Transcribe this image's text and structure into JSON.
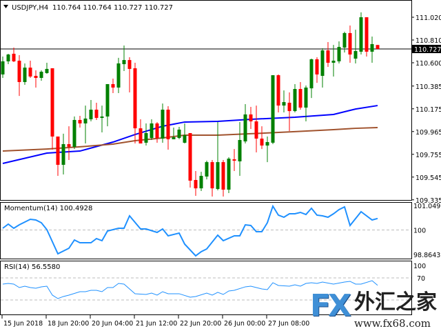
{
  "header": {
    "symbol": "USDJPY,H4",
    "ohlc_readout": "110.764 110.764 110.727 110.727"
  },
  "colors": {
    "bull": "#008000",
    "bear": "#ff0000",
    "ma_fast": "#0000ff",
    "ma_slow": "#a0522d",
    "indicator": "#1e90ff",
    "current_price_bg": "#000000"
  },
  "chart_data": [
    {
      "type": "candlestick",
      "title": "USDJPY,H4",
      "ylim": [
        109.335,
        111.09
      ],
      "yticks": [
        "111.020",
        "110.810",
        "110.600",
        "110.385",
        "110.175",
        "109.965",
        "109.755",
        "109.545",
        "109.335"
      ],
      "ytick_values": [
        111.02,
        110.81,
        110.6,
        110.385,
        110.175,
        109.965,
        109.755,
        109.545,
        109.335
      ],
      "current_price": 110.727,
      "current_price_label": "110.727",
      "xticks": [
        {
          "index": 0,
          "label": "15 Jun 2018"
        },
        {
          "index": 8,
          "label": "18 Jun 20:00"
        },
        {
          "index": 16,
          "label": "20 Jun 04:00"
        },
        {
          "index": 24,
          "label": "21 Jun 12:00"
        },
        {
          "index": 32,
          "label": "22 Jun 20:00"
        },
        {
          "index": 40,
          "label": "26 Jun 00:00"
        },
        {
          "index": 48,
          "label": "27 Jun 08:00"
        }
      ],
      "ohlc": [
        [
          110.492,
          110.657,
          110.46,
          110.613
        ],
        [
          110.613,
          110.683,
          110.587,
          110.676
        ],
        [
          110.683,
          110.74,
          110.606,
          110.613
        ],
        [
          110.619,
          110.67,
          110.294,
          110.422
        ],
        [
          110.422,
          110.594,
          110.396,
          110.555
        ],
        [
          110.555,
          110.619,
          110.46,
          110.473
        ],
        [
          110.479,
          110.53,
          110.371,
          110.46
        ],
        [
          110.46,
          110.53,
          110.434,
          110.517
        ],
        [
          110.505,
          110.6,
          110.498,
          110.543
        ],
        [
          110.549,
          110.549,
          109.798,
          109.919
        ],
        [
          109.919,
          109.919,
          109.556,
          109.658
        ],
        [
          109.658,
          109.945,
          109.569,
          109.849
        ],
        [
          109.849,
          110.014,
          109.703,
          109.824
        ],
        [
          109.824,
          110.104,
          109.804,
          110.072
        ],
        [
          110.072,
          110.11,
          110.002,
          110.04
        ],
        [
          110.04,
          110.205,
          109.855,
          110.085
        ],
        [
          110.078,
          110.256,
          110.059,
          110.167
        ],
        [
          110.167,
          110.231,
          110.072,
          110.091
        ],
        [
          110.091,
          110.205,
          109.957,
          110.104
        ],
        [
          110.104,
          110.403,
          110.014,
          110.403
        ],
        [
          110.403,
          110.454,
          110.32,
          110.371
        ],
        [
          110.371,
          110.645,
          110.32,
          110.594
        ],
        [
          110.587,
          110.759,
          110.524,
          110.625
        ],
        [
          110.625,
          110.651,
          110.326,
          110.543
        ],
        [
          110.549,
          110.6,
          109.855,
          109.995
        ],
        [
          109.995,
          110.078,
          109.855,
          109.855
        ],
        [
          109.862,
          110.04,
          109.836,
          109.951
        ],
        [
          109.906,
          110.078,
          109.887,
          110.04
        ],
        [
          110.04,
          110.053,
          109.862,
          109.906
        ],
        [
          109.9,
          110.224,
          109.862,
          110.167
        ],
        [
          110.167,
          110.199,
          109.798,
          109.894
        ],
        [
          109.894,
          110.002,
          109.894,
          109.913
        ],
        [
          109.906,
          110.008,
          109.894,
          109.983
        ],
        [
          109.862,
          110.04,
          109.855,
          109.932
        ],
        [
          109.951,
          109.951,
          109.448,
          109.512
        ],
        [
          109.518,
          109.601,
          109.372,
          109.441
        ],
        [
          109.441,
          109.594,
          109.416,
          109.556
        ],
        [
          109.55,
          109.696,
          109.524,
          109.683
        ],
        [
          109.683,
          109.703,
          109.365,
          109.441
        ],
        [
          109.435,
          110.053,
          109.423,
          109.683
        ],
        [
          109.683,
          109.703,
          109.365,
          109.429
        ],
        [
          109.429,
          109.728,
          109.397,
          109.715
        ],
        [
          109.709,
          109.804,
          109.601,
          109.696
        ],
        [
          109.69,
          110.053,
          109.556,
          109.887
        ],
        [
          109.874,
          110.218,
          109.855,
          110.123
        ],
        [
          110.123,
          110.193,
          109.989,
          110.059
        ],
        [
          110.059,
          110.205,
          109.773,
          109.9
        ],
        [
          109.9,
          110.014,
          109.804,
          109.836
        ],
        [
          109.836,
          109.919,
          109.683,
          109.868
        ],
        [
          109.862,
          110.485,
          109.849,
          110.485
        ],
        [
          110.485,
          110.492,
          110.142,
          110.205
        ],
        [
          110.205,
          110.345,
          110.142,
          110.237
        ],
        [
          110.231,
          110.326,
          109.97,
          110.154
        ],
        [
          110.154,
          110.403,
          110.142,
          110.358
        ],
        [
          110.358,
          110.422,
          110.167,
          110.186
        ],
        [
          110.186,
          110.39,
          110.059,
          110.371
        ],
        [
          110.364,
          110.638,
          110.275,
          110.632
        ],
        [
          110.632,
          110.651,
          110.415,
          110.492
        ],
        [
          110.479,
          110.734,
          110.371,
          110.714
        ],
        [
          110.714,
          110.791,
          110.562,
          110.6
        ],
        [
          110.6,
          110.765,
          110.473,
          110.619
        ],
        [
          110.613,
          110.797,
          110.594,
          110.746
        ],
        [
          110.74,
          110.886,
          110.695,
          110.874
        ],
        [
          110.874,
          110.944,
          110.6,
          110.676
        ],
        [
          110.638,
          110.905,
          110.594,
          110.708
        ],
        [
          110.702,
          111.065,
          110.676,
          111.02
        ],
        [
          111.02,
          111.02,
          110.657,
          110.702
        ],
        [
          110.702,
          110.842,
          110.6,
          110.772
        ],
        [
          110.764,
          110.764,
          110.727,
          110.727
        ]
      ],
      "overlays": [
        {
          "color": "#0000ff",
          "points": [
            [
              0,
              109.671
            ],
            [
              8,
              109.766
            ],
            [
              14,
              109.785
            ],
            [
              20,
              109.868
            ],
            [
              24,
              109.938
            ],
            [
              29,
              110.014
            ],
            [
              33,
              110.053
            ],
            [
              39,
              110.059
            ],
            [
              45,
              110.078
            ],
            [
              53,
              110.097
            ],
            [
              60,
              110.123
            ],
            [
              64,
              110.173
            ],
            [
              68,
              110.205
            ]
          ]
        },
        {
          "color": "#a0522d",
          "points": [
            [
              0,
              109.785
            ],
            [
              8,
              109.804
            ],
            [
              14,
              109.824
            ],
            [
              20,
              109.849
            ],
            [
              24,
              109.881
            ],
            [
              29,
              109.906
            ],
            [
              33,
              109.932
            ],
            [
              39,
              109.932
            ],
            [
              45,
              109.945
            ],
            [
              53,
              109.964
            ],
            [
              60,
              109.983
            ],
            [
              64,
              109.995
            ],
            [
              68,
              110.002
            ]
          ]
        }
      ]
    },
    {
      "type": "line",
      "title": "Momentum(14) 100.4928",
      "ylim": [
        98.8643,
        101.0496
      ],
      "yticks": [
        "101.0496",
        "100",
        "98.8643"
      ],
      "level": 100,
      "points": [
        [
          0,
          100.074
        ],
        [
          1,
          100.251
        ],
        [
          2,
          100.074
        ],
        [
          3,
          100.221
        ],
        [
          4,
          100.34
        ],
        [
          5,
          100.458
        ],
        [
          6,
          100.428
        ],
        [
          7,
          100.31
        ],
        [
          8,
          100.015
        ],
        [
          10,
          98.981
        ],
        [
          12,
          99.217
        ],
        [
          13,
          99.572
        ],
        [
          14,
          99.454
        ],
        [
          16,
          99.454
        ],
        [
          17,
          99.631
        ],
        [
          18,
          99.542
        ],
        [
          19,
          99.956
        ],
        [
          21,
          100.074
        ],
        [
          22,
          100.074
        ],
        [
          23,
          100.605
        ],
        [
          25,
          100.044
        ],
        [
          26,
          100.044
        ],
        [
          28,
          99.897
        ],
        [
          29,
          100.044
        ],
        [
          30,
          99.749
        ],
        [
          32,
          99.867
        ],
        [
          33,
          99.395
        ],
        [
          35,
          98.893
        ],
        [
          36,
          99.07
        ],
        [
          37,
          99.188
        ],
        [
          39,
          99.779
        ],
        [
          40,
          99.542
        ],
        [
          42,
          99.749
        ],
        [
          43,
          99.749
        ],
        [
          44,
          100.221
        ],
        [
          45,
          100.192
        ],
        [
          46,
          99.926
        ],
        [
          47,
          99.926
        ],
        [
          48,
          100.31
        ],
        [
          49,
          101.019
        ],
        [
          50,
          100.635
        ],
        [
          51,
          100.546
        ],
        [
          52,
          100.694
        ],
        [
          53,
          100.694
        ],
        [
          54,
          100.753
        ],
        [
          55,
          100.664
        ],
        [
          56,
          100.93
        ],
        [
          57,
          100.635
        ],
        [
          58,
          100.605
        ],
        [
          59,
          100.546
        ],
        [
          60,
          100.694
        ],
        [
          61,
          100.871
        ],
        [
          62,
          100.989
        ],
        [
          63,
          100.192
        ],
        [
          65,
          100.783
        ],
        [
          67,
          100.428
        ],
        [
          68,
          100.4928
        ]
      ]
    },
    {
      "type": "line",
      "title": "RSI(14) 56.5580",
      "ylim": [
        0,
        100
      ],
      "yticks": [
        "100",
        "70"
      ],
      "levels": [
        70,
        30
      ],
      "points": [
        [
          0,
          58.8
        ],
        [
          1,
          60.0
        ],
        [
          2,
          58.8
        ],
        [
          3,
          52.5
        ],
        [
          4,
          55.0
        ],
        [
          5,
          52.5
        ],
        [
          6,
          51.3
        ],
        [
          7,
          53.8
        ],
        [
          8,
          55.0
        ],
        [
          9,
          38.8
        ],
        [
          10,
          32.5
        ],
        [
          11,
          36.3
        ],
        [
          12,
          38.8
        ],
        [
          14,
          45.0
        ],
        [
          15,
          45.0
        ],
        [
          16,
          47.5
        ],
        [
          17,
          47.5
        ],
        [
          18,
          45.0
        ],
        [
          19,
          52.5
        ],
        [
          20,
          52.5
        ],
        [
          21,
          60.0
        ],
        [
          22,
          58.8
        ],
        [
          24,
          41.3
        ],
        [
          26,
          40.0
        ],
        [
          27,
          42.5
        ],
        [
          28,
          38.8
        ],
        [
          29,
          45.0
        ],
        [
          30,
          41.3
        ],
        [
          32,
          41.3
        ],
        [
          34,
          35.0
        ],
        [
          35,
          36.3
        ],
        [
          37,
          42.5
        ],
        [
          38,
          38.8
        ],
        [
          39,
          43.8
        ],
        [
          40,
          40.0
        ],
        [
          41,
          46.3
        ],
        [
          42,
          47.5
        ],
        [
          44,
          53.8
        ],
        [
          45,
          55.0
        ],
        [
          47,
          50.0
        ],
        [
          48,
          48.8
        ],
        [
          49,
          61.3
        ],
        [
          50,
          56.3
        ],
        [
          52,
          55.0
        ],
        [
          53,
          57.5
        ],
        [
          54,
          55.0
        ],
        [
          55,
          60.0
        ],
        [
          56,
          61.3
        ],
        [
          57,
          60.0
        ],
        [
          58,
          62.5
        ],
        [
          60,
          58.8
        ],
        [
          62,
          62.5
        ],
        [
          63,
          63.8
        ],
        [
          64,
          58.8
        ],
        [
          65,
          58.8
        ],
        [
          67,
          65.0
        ],
        [
          68,
          56.558
        ]
      ]
    }
  ],
  "watermark": {
    "logo": "FX",
    "brand": "外汇之家",
    "url": "www.fx68.com"
  }
}
